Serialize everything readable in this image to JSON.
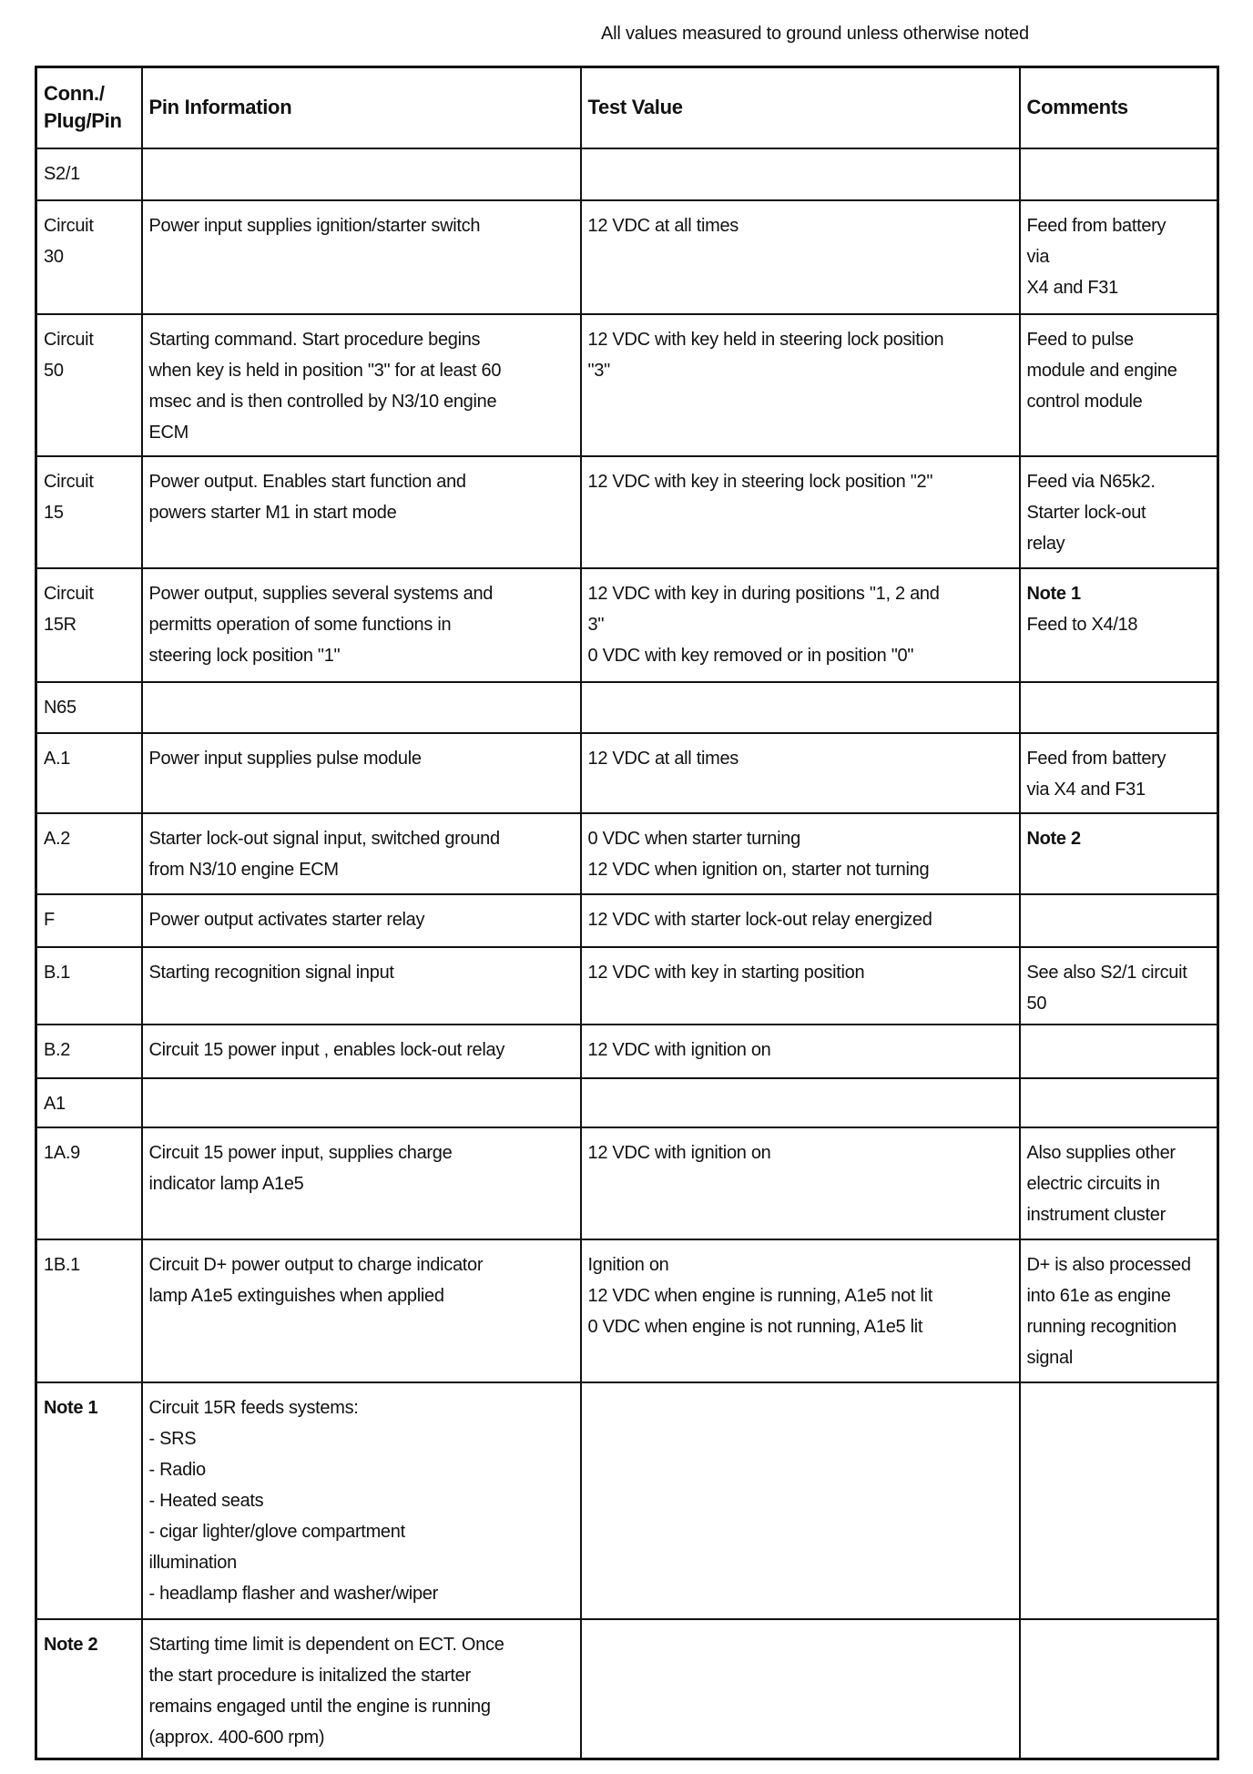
{
  "header_note": "All values measured to ground unless otherwise noted",
  "columns": [
    "Conn./\nPlug/Pin",
    "Pin Information",
    "Test Value",
    "Comments"
  ],
  "rows": [
    {
      "pin": "S2/1",
      "info": "",
      "test": "",
      "comments": "",
      "h": 57
    },
    {
      "pin": "Circuit\n30",
      "info": "Power input supplies ignition/starter switch",
      "test": "12 VDC at all times",
      "comments": "Feed from battery\nvia\nX4 and F31",
      "h": 125
    },
    {
      "pin": "Circuit\n50",
      "info": "Starting command. Start procedure begins\nwhen key is held in position \"3\" for at least 60\nmsec and is then controlled by N3/10 engine\nECM",
      "test": "12 VDC with key held in steering lock position\n\"3\"",
      "comments": "Feed to pulse\nmodule and engine\ncontrol module",
      "h": 156
    },
    {
      "pin": "Circuit\n15",
      "info": "Power output. Enables start function and\npowers starter M1 in start mode",
      "test": "12 VDC with key in steering lock position \"2\"",
      "comments": "Feed via N65k2.\nStarter lock-out\nrelay",
      "h": 123
    },
    {
      "pin": "Circuit\n15R",
      "info": "Power output, supplies several systems and\npermitts operation of some functions in\nsteering lock position \"1\"",
      "test": "12 VDC with key in during positions \"1, 2 and\n3\"\n0 VDC with key removed or in position \"0\"",
      "comments": "Note 1\nFeed to X4/18",
      "comments_bold_first": true,
      "h": 125
    },
    {
      "pin": "N65",
      "info": "",
      "test": "",
      "comments": "",
      "h": 56
    },
    {
      "pin": "A.1",
      "info": "Power input supplies pulse module",
      "test": "12 VDC at all times",
      "comments": "Feed from battery\nvia X4 and F31",
      "h": 88
    },
    {
      "pin": "A.2",
      "info": "Starter lock-out signal input, switched ground\nfrom N3/10 engine ECM",
      "test": " 0 VDC when starter turning\n12 VDC when ignition on, starter not turning",
      "comments": "Note 2",
      "comments_bold_first": true,
      "h": 89
    },
    {
      "pin": "F",
      "info": "Power output activates starter relay",
      "test": "12 VDC with starter lock-out relay energized",
      "comments": "",
      "h": 58
    },
    {
      "pin": "B.1",
      "info": "Starting recognition signal input",
      "test": "12 VDC with key in starting position",
      "comments": "See also S2/1 circuit\n50",
      "h": 85
    },
    {
      "pin": "B.2",
      "info": "Circuit 15 power input , enables lock-out relay",
      "test": "12 VDC with ignition on",
      "comments": "",
      "h": 59
    },
    {
      "pin": "A1",
      "info": "",
      "test": "",
      "comments": "",
      "h": 54
    },
    {
      "pin": "1A.9",
      "info": "Circuit 15 power input, supplies charge\nindicator lamp A1e5",
      "test": "12 VDC with ignition on",
      "comments": "Also supplies other\nelectric circuits in\ninstrument cluster",
      "h": 123
    },
    {
      "pin": "1B.1",
      "info": "Circuit D+  power output to charge indicator\nlamp A1e5 extinguishes when applied",
      "test": "Ignition on\n12 VDC when engine is running, A1e5 not lit\n0 VDC when engine is not running, A1e5 lit",
      "comments": "D+ is also processed\ninto 61e as engine\nrunning recognition\nsignal",
      "h": 157
    },
    {
      "pin": "Note 1",
      "pin_bold": true,
      "info": "Circuit 15R feeds systems:\n- SRS\n- Radio\n- Heated seats\n- cigar lighter/glove compartment\nillumination\n- headlamp flasher and washer/wiper",
      "test": "",
      "comments": "",
      "h": 260
    },
    {
      "pin": "Note 2",
      "pin_bold": true,
      "info": "Starting time limit is dependent on ECT. Once\nthe start procedure is initalized the starter\nremains engaged until the engine is running\n(approx. 400-600 rpm)",
      "test": "",
      "comments": "",
      "h": 154
    }
  ]
}
